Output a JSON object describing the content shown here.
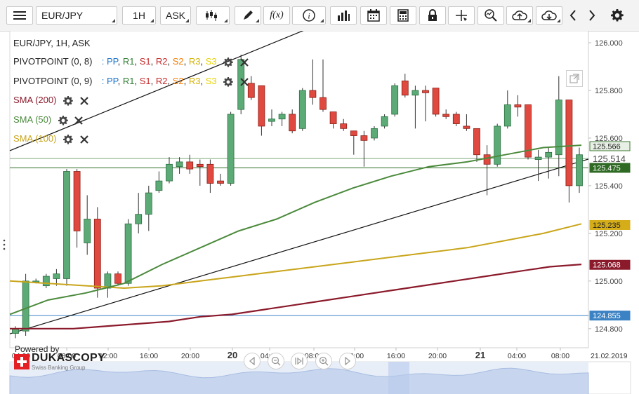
{
  "toolbar": {
    "instrument": "EUR/JPY",
    "period": "1H",
    "side": "ASK",
    "buttons": [
      {
        "name": "menu-icon"
      },
      {
        "name": "candlestick-icon"
      },
      {
        "name": "pen-icon"
      },
      {
        "name": "function-icon"
      },
      {
        "name": "info-icon"
      },
      {
        "name": "bar-chart-icon"
      },
      {
        "name": "calendar-icon"
      },
      {
        "name": "calculator-icon"
      },
      {
        "name": "lock-icon"
      },
      {
        "name": "crosshair-icon"
      },
      {
        "name": "zoom-icon"
      },
      {
        "name": "cloud-upload-icon"
      },
      {
        "name": "cloud-download-icon"
      },
      {
        "name": "chevron-left-icon"
      },
      {
        "name": "chevron-right-icon"
      },
      {
        "name": "gear-icon"
      }
    ],
    "function_label": "f(x)"
  },
  "legend": {
    "title": "EUR/JPY, 1H, ASK",
    "pivots": [
      {
        "label": "PIVOTPOINT (0, 8)"
      },
      {
        "label": "PIVOTPOINT (0, 9)"
      }
    ],
    "pivot_levels": [
      {
        "text": "PP",
        "color": "#1a73c9"
      },
      {
        "text": "R1",
        "color": "#2e7d32"
      },
      {
        "text": "S1",
        "color": "#c62828"
      },
      {
        "text": "R2",
        "color": "#c62828"
      },
      {
        "text": "S2",
        "color": "#f57c00"
      },
      {
        "text": "R3",
        "color": "#d4b100"
      },
      {
        "text": "S3",
        "color": "#e6d200"
      }
    ],
    "pivot_sep": ":",
    "sma": [
      {
        "label": "SMA (200)",
        "color": "#8b1a2b"
      },
      {
        "label": "SMA (50)",
        "color": "#4b8a3c"
      },
      {
        "label": "SMA (100)",
        "color": "#c9a51a"
      }
    ]
  },
  "price_axis": {
    "ticks": [
      "126.000",
      "125.800",
      "125.600",
      "125.400",
      "125.200",
      "125.000",
      "124.800"
    ],
    "tags": [
      {
        "label": "125.566",
        "bg": "#e8f0e6",
        "fg": "#222",
        "border": "#3d7a34"
      },
      {
        "label": "125.514",
        "bg": "#ffffff",
        "fg": "#4a4a4a",
        "border": "#ffffff",
        "large": true
      },
      {
        "label": "125.475",
        "bg": "#2f6a25",
        "fg": "#ffffff",
        "border": "#2f6a25"
      },
      {
        "label": "125.235",
        "bg": "#d4ad18",
        "fg": "#222",
        "border": "#d4ad18"
      },
      {
        "label": "125.068",
        "bg": "#8b1a2b",
        "fg": "#ffffff",
        "border": "#8b1a2b"
      },
      {
        "label": "124.855",
        "bg": "#3b82c4",
        "fg": "#ffffff",
        "border": "#3b82c4"
      }
    ]
  },
  "time_axis": {
    "labels": [
      {
        "text": "04:00",
        "bold": false
      },
      {
        "text": "08:00",
        "bold": false
      },
      {
        "text": "12:00",
        "bold": false
      },
      {
        "text": "16:00",
        "bold": false
      },
      {
        "text": "20:00",
        "bold": false
      },
      {
        "text": "20",
        "bold": true
      },
      {
        "text": "04:00",
        "bold": false
      },
      {
        "text": "08:00",
        "bold": false
      },
      {
        "text": "12:00",
        "bold": false
      },
      {
        "text": "16:00",
        "bold": false
      },
      {
        "text": "20:00",
        "bold": false
      },
      {
        "text": "21",
        "bold": true
      },
      {
        "text": "04:00",
        "bold": false
      },
      {
        "text": "08:00",
        "bold": false
      }
    ],
    "end_date": "21.02.2019"
  },
  "branding": {
    "powered_by": "Powered by",
    "name": "DUKASCOPY",
    "subtitle": "Swiss Banking Group"
  },
  "nav": [
    {
      "name": "scroll-left-icon"
    },
    {
      "name": "zoom-out-icon"
    },
    {
      "name": "reset-view-icon"
    },
    {
      "name": "zoom-in-icon"
    },
    {
      "name": "scroll-right-icon"
    }
  ],
  "chart_data": {
    "type": "candlestick",
    "instrument": "EUR/JPY",
    "timeframe": "1H",
    "ylim": [
      124.72,
      126.05
    ],
    "candles": [
      {
        "o": 124.78,
        "h": 124.81,
        "l": 124.76,
        "c": 124.8
      },
      {
        "o": 124.79,
        "h": 125.03,
        "l": 124.77,
        "c": 125.0
      },
      {
        "o": 125.0,
        "h": 125.01,
        "l": 124.99,
        "c": 125.0
      },
      {
        "o": 124.98,
        "h": 125.03,
        "l": 124.97,
        "c": 125.02
      },
      {
        "o": 125.01,
        "h": 125.05,
        "l": 124.98,
        "c": 125.03
      },
      {
        "o": 125.01,
        "h": 125.47,
        "l": 124.98,
        "c": 125.46
      },
      {
        "o": 125.46,
        "h": 125.47,
        "l": 125.14,
        "c": 125.21
      },
      {
        "o": 125.16,
        "h": 125.36,
        "l": 125.11,
        "c": 125.26
      },
      {
        "o": 125.26,
        "h": 125.31,
        "l": 124.93,
        "c": 124.97
      },
      {
        "o": 124.97,
        "h": 125.04,
        "l": 124.93,
        "c": 125.03
      },
      {
        "o": 125.03,
        "h": 125.04,
        "l": 124.98,
        "c": 124.99
      },
      {
        "o": 124.99,
        "h": 125.26,
        "l": 124.98,
        "c": 125.24
      },
      {
        "o": 125.24,
        "h": 125.37,
        "l": 125.2,
        "c": 125.28
      },
      {
        "o": 125.28,
        "h": 125.4,
        "l": 125.21,
        "c": 125.37
      },
      {
        "o": 125.38,
        "h": 125.46,
        "l": 125.37,
        "c": 125.42
      },
      {
        "o": 125.42,
        "h": 125.52,
        "l": 125.41,
        "c": 125.49
      },
      {
        "o": 125.48,
        "h": 125.52,
        "l": 125.45,
        "c": 125.5
      },
      {
        "o": 125.5,
        "h": 125.53,
        "l": 125.45,
        "c": 125.47
      },
      {
        "o": 125.49,
        "h": 125.51,
        "l": 125.4,
        "c": 125.48
      },
      {
        "o": 125.49,
        "h": 125.51,
        "l": 125.37,
        "c": 125.41
      },
      {
        "o": 125.42,
        "h": 125.45,
        "l": 125.4,
        "c": 125.41
      },
      {
        "o": 125.41,
        "h": 125.71,
        "l": 125.4,
        "c": 125.7
      },
      {
        "o": 125.72,
        "h": 125.95,
        "l": 125.7,
        "c": 125.93
      },
      {
        "o": 125.83,
        "h": 125.86,
        "l": 125.76,
        "c": 125.77
      },
      {
        "o": 125.82,
        "h": 125.82,
        "l": 125.61,
        "c": 125.65
      },
      {
        "o": 125.67,
        "h": 125.72,
        "l": 125.65,
        "c": 125.68
      },
      {
        "o": 125.68,
        "h": 125.71,
        "l": 125.65,
        "c": 125.7
      },
      {
        "o": 125.7,
        "h": 125.72,
        "l": 125.62,
        "c": 125.63
      },
      {
        "o": 125.64,
        "h": 125.81,
        "l": 125.63,
        "c": 125.8
      },
      {
        "o": 125.8,
        "h": 125.93,
        "l": 125.74,
        "c": 125.77
      },
      {
        "o": 125.77,
        "h": 125.93,
        "l": 125.71,
        "c": 125.72
      },
      {
        "o": 125.71,
        "h": 125.71,
        "l": 125.64,
        "c": 125.66
      },
      {
        "o": 125.66,
        "h": 125.68,
        "l": 125.63,
        "c": 125.64
      },
      {
        "o": 125.63,
        "h": 125.63,
        "l": 125.53,
        "c": 125.61
      },
      {
        "o": 125.61,
        "h": 125.63,
        "l": 125.48,
        "c": 125.59
      },
      {
        "o": 125.6,
        "h": 125.65,
        "l": 125.59,
        "c": 125.64
      },
      {
        "o": 125.65,
        "h": 125.7,
        "l": 125.64,
        "c": 125.69
      },
      {
        "o": 125.7,
        "h": 125.83,
        "l": 125.69,
        "c": 125.82
      },
      {
        "o": 125.84,
        "h": 125.87,
        "l": 125.77,
        "c": 125.78
      },
      {
        "o": 125.78,
        "h": 125.82,
        "l": 125.64,
        "c": 125.8
      },
      {
        "o": 125.8,
        "h": 125.82,
        "l": 125.67,
        "c": 125.79
      },
      {
        "o": 125.81,
        "h": 125.81,
        "l": 125.69,
        "c": 125.7
      },
      {
        "o": 125.7,
        "h": 125.72,
        "l": 125.68,
        "c": 125.69
      },
      {
        "o": 125.7,
        "h": 125.71,
        "l": 125.65,
        "c": 125.66
      },
      {
        "o": 125.65,
        "h": 125.7,
        "l": 125.63,
        "c": 125.64
      },
      {
        "o": 125.64,
        "h": 125.64,
        "l": 125.5,
        "c": 125.53
      },
      {
        "o": 125.53,
        "h": 125.57,
        "l": 125.36,
        "c": 125.49
      },
      {
        "o": 125.49,
        "h": 125.66,
        "l": 125.48,
        "c": 125.65
      },
      {
        "o": 125.65,
        "h": 125.8,
        "l": 125.64,
        "c": 125.74
      },
      {
        "o": 125.74,
        "h": 125.78,
        "l": 125.69,
        "c": 125.73
      },
      {
        "o": 125.74,
        "h": 125.74,
        "l": 125.51,
        "c": 125.52
      },
      {
        "o": 125.51,
        "h": 125.55,
        "l": 125.42,
        "c": 125.52
      },
      {
        "o": 125.52,
        "h": 125.56,
        "l": 125.43,
        "c": 125.54
      },
      {
        "o": 125.53,
        "h": 125.86,
        "l": 125.44,
        "c": 125.76
      },
      {
        "o": 125.76,
        "h": 125.76,
        "l": 125.33,
        "c": 125.4
      },
      {
        "o": 125.4,
        "h": 125.56,
        "l": 125.37,
        "c": 125.53
      }
    ],
    "sma200": [
      124.8,
      124.8,
      124.8,
      124.81,
      124.82,
      124.83,
      124.85,
      124.86,
      124.88,
      124.9,
      124.92,
      124.94,
      124.96,
      124.98,
      125.0,
      125.02,
      125.04,
      125.06,
      125.07
    ],
    "sma50": [
      124.86,
      124.92,
      124.95,
      124.99,
      125.07,
      125.14,
      125.21,
      125.26,
      125.33,
      125.39,
      125.44,
      125.48,
      125.5,
      125.53,
      125.56,
      125.57
    ],
    "sma100": [
      125.0,
      124.99,
      124.98,
      124.97,
      124.98,
      125.0,
      125.02,
      125.04,
      125.06,
      125.08,
      125.1,
      125.12,
      125.14,
      125.17,
      125.2,
      125.24
    ],
    "trendline_high_x": [
      0,
      28
    ],
    "trendline_low_x": [
      0,
      55
    ],
    "horizontal_lines": [
      {
        "value": 125.475,
        "color": "#2f6a25"
      },
      {
        "value": 125.514,
        "color": "#7fa97a"
      },
      {
        "value": 124.855,
        "color": "#3b82c4"
      }
    ],
    "xlabel": "",
    "ylabel": ""
  }
}
